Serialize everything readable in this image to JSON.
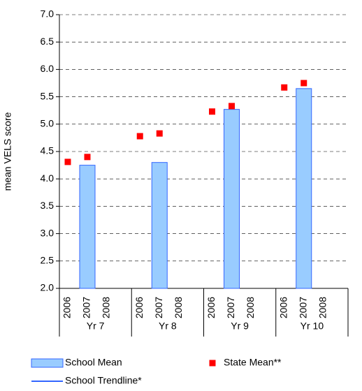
{
  "chart_data": {
    "type": "bar",
    "ylabel": "mean VELS score",
    "categories": [
      "2006",
      "2007",
      "2008",
      "2006",
      "2007",
      "2008",
      "2006",
      "2007",
      "2008",
      "2006",
      "2007",
      "2008"
    ],
    "groups": [
      "Yr 7",
      "Yr 8",
      "Yr 9",
      "Yr 10"
    ],
    "series": [
      {
        "name": "School Mean",
        "kind": "bar",
        "color": "#99ccff",
        "edge": "#3366ff",
        "values": [
          null,
          4.25,
          null,
          null,
          4.3,
          null,
          null,
          5.27,
          null,
          null,
          5.65,
          null
        ]
      },
      {
        "name": "State Mean**",
        "kind": "scatter",
        "color": "#ff0000",
        "values": [
          4.31,
          4.4,
          null,
          4.78,
          4.83,
          null,
          5.23,
          5.33,
          null,
          5.67,
          5.75,
          null
        ]
      },
      {
        "name": "School Trendline*",
        "kind": "line",
        "color": "#3366ff",
        "values": [
          null,
          null,
          null,
          null,
          null,
          null,
          null,
          null,
          null,
          null,
          null,
          null
        ]
      }
    ],
    "ylim": [
      2,
      7
    ],
    "yticks": [
      {
        "value": 2,
        "label": "2.0"
      },
      2.5,
      {
        "value": 3,
        "label": "3.0"
      },
      3.5,
      {
        "value": 4,
        "label": "4.0"
      },
      4.5,
      {
        "value": 5,
        "label": "5.0"
      },
      5.5,
      {
        "value": 6,
        "label": "6.0"
      },
      6.5,
      {
        "value": 7,
        "label": "7.0"
      }
    ],
    "grid": true
  }
}
